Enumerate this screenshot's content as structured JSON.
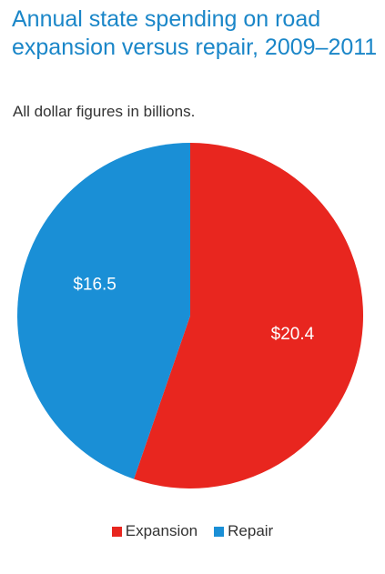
{
  "chart_data": {
    "type": "pie",
    "title": "Annual state spending on road expansion versus repair, 2009–2011",
    "subtitle": "All dollar figures in billions.",
    "slices": [
      {
        "name": "Expansion",
        "value": 20.4,
        "label": "$20.4",
        "color": "#e8261f"
      },
      {
        "name": "Repair",
        "value": 16.5,
        "label": "$16.5",
        "color": "#1a8fd6"
      }
    ],
    "legend_position": "bottom"
  }
}
